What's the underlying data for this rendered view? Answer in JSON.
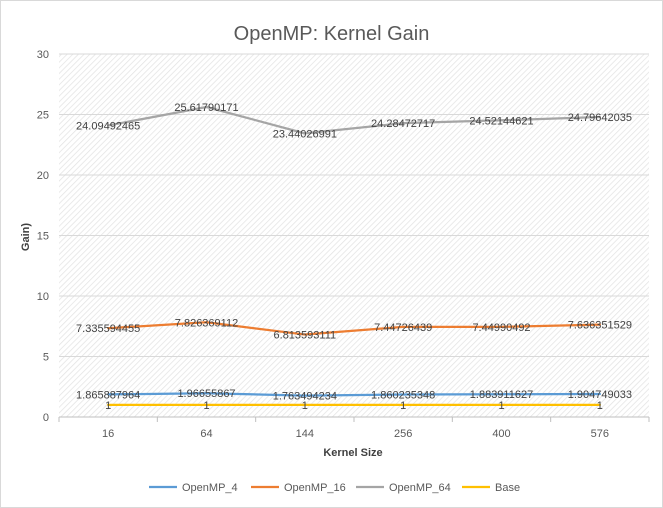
{
  "chart_data": {
    "type": "line",
    "title": "OpenMP: Kernel Gain",
    "xlabel": "Kernel Size",
    "ylabel": "Gain)",
    "categories": [
      "16",
      "64",
      "144",
      "256",
      "400",
      "576"
    ],
    "ylim": [
      0,
      30
    ],
    "yticks": [
      0,
      5,
      10,
      15,
      20,
      25,
      30
    ],
    "grid": true,
    "legend_position": "bottom",
    "series": [
      {
        "name": "OpenMP_4",
        "color": "#5b9bd5",
        "values": [
          1.865887964,
          1.96655867,
          1.763494234,
          1.860235348,
          1.883911627,
          1.904749033
        ],
        "labels": [
          "1.865887964",
          "1.96655867",
          "1.763494234",
          "1.860235348",
          "1.883911627",
          "1.904749033"
        ]
      },
      {
        "name": "OpenMP_16",
        "color": "#ed7d31",
        "values": [
          7.335594455,
          7.826369112,
          6.813593111,
          7.44726439,
          7.44990492,
          7.636351529
        ],
        "labels": [
          "7.335594455",
          "7.826369112",
          "6.813593111",
          "7.44726439",
          "7.44990492",
          "7.636351529"
        ]
      },
      {
        "name": "OpenMP_64",
        "color": "#a5a5a5",
        "values": [
          24.09492465,
          25.61790171,
          23.44026991,
          24.28472717,
          24.52144621,
          24.79642035
        ],
        "labels": [
          "24.09492465",
          "25.61790171",
          "23.44026991",
          "24.28472717",
          "24.52144621",
          "24.79642035"
        ]
      },
      {
        "name": "Base",
        "color": "#ffc000",
        "values": [
          1,
          1,
          1,
          1,
          1,
          1
        ],
        "labels": [
          "1",
          "1",
          "1",
          "1",
          "1",
          "1"
        ]
      }
    ]
  }
}
